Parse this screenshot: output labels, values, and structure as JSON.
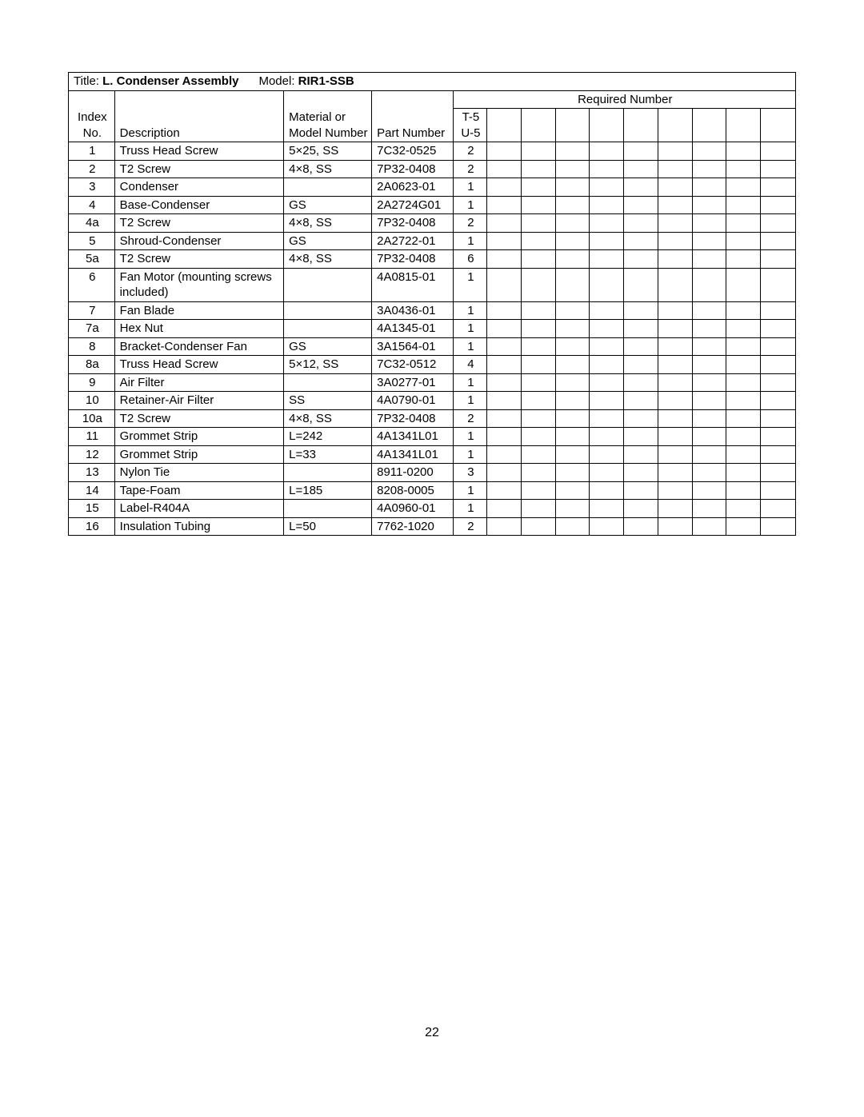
{
  "header": {
    "title_label": "Title: ",
    "title_value": "L. Condenser Assembly",
    "model_label": "Model: ",
    "model_value": "RIR1-SSB",
    "required_number": "Required Number",
    "index_no_line1": "Index",
    "index_no_line2": "No.",
    "description": "Description",
    "material_line1": "Material or",
    "material_line2": "Model Number",
    "part_number": "Part Number",
    "qty_col_line1": "T-5",
    "qty_col_line2": "U-5"
  },
  "rows": [
    {
      "idx": "1",
      "desc": "Truss Head Screw",
      "mat": "5×25, SS",
      "part": "7C32-0525",
      "qty": "2"
    },
    {
      "idx": "2",
      "desc": "T2 Screw",
      "mat": "4×8, SS",
      "part": "7P32-0408",
      "qty": "2"
    },
    {
      "idx": "3",
      "desc": "Condenser",
      "mat": "",
      "part": "2A0623-01",
      "qty": "1"
    },
    {
      "idx": "4",
      "desc": "Base-Condenser",
      "mat": "GS",
      "part": "2A2724G01",
      "qty": "1"
    },
    {
      "idx": "4a",
      "desc": "T2 Screw",
      "mat": "4×8, SS",
      "part": "7P32-0408",
      "qty": "2"
    },
    {
      "idx": "5",
      "desc": "Shroud-Condenser",
      "mat": "GS",
      "part": "2A2722-01",
      "qty": "1"
    },
    {
      "idx": "5a",
      "desc": "T2 Screw",
      "mat": "4×8, SS",
      "part": "7P32-0408",
      "qty": "6"
    },
    {
      "idx": "6",
      "desc": "Fan Motor (mounting screws included)",
      "mat": "",
      "part": "4A0815-01",
      "qty": "1"
    },
    {
      "idx": "7",
      "desc": "Fan Blade",
      "mat": "",
      "part": "3A0436-01",
      "qty": "1"
    },
    {
      "idx": "7a",
      "desc": "Hex Nut",
      "mat": "",
      "part": "4A1345-01",
      "qty": "1"
    },
    {
      "idx": "8",
      "desc": "Bracket-Condenser Fan",
      "mat": "GS",
      "part": "3A1564-01",
      "qty": "1"
    },
    {
      "idx": "8a",
      "desc": "Truss Head Screw",
      "mat": "5×12, SS",
      "part": "7C32-0512",
      "qty": "4"
    },
    {
      "idx": "9",
      "desc": "Air Filter",
      "mat": "",
      "part": "3A0277-01",
      "qty": "1"
    },
    {
      "idx": "10",
      "desc": "Retainer-Air Filter",
      "mat": "SS",
      "part": "4A0790-01",
      "qty": "1"
    },
    {
      "idx": "10a",
      "desc": "T2 Screw",
      "mat": "4×8, SS",
      "part": "7P32-0408",
      "qty": "2"
    },
    {
      "idx": "11",
      "desc": "Grommet Strip",
      "mat": "L=242",
      "part": "4A1341L01",
      "qty": "1"
    },
    {
      "idx": "12",
      "desc": "Grommet Strip",
      "mat": "L=33",
      "part": "4A1341L01",
      "qty": "1"
    },
    {
      "idx": "13",
      "desc": "Nylon Tie",
      "mat": "",
      "part": "8911-0200",
      "qty": "3"
    },
    {
      "idx": "14",
      "desc": "Tape-Foam",
      "mat": "L=185",
      "part": "8208-0005",
      "qty": "1"
    },
    {
      "idx": "15",
      "desc": "Label-R404A",
      "mat": "",
      "part": "4A0960-01",
      "qty": "1"
    },
    {
      "idx": "16",
      "desc": "Insulation Tubing",
      "mat": "L=50",
      "part": "7762-1020",
      "qty": "2"
    }
  ],
  "page_number": "22"
}
